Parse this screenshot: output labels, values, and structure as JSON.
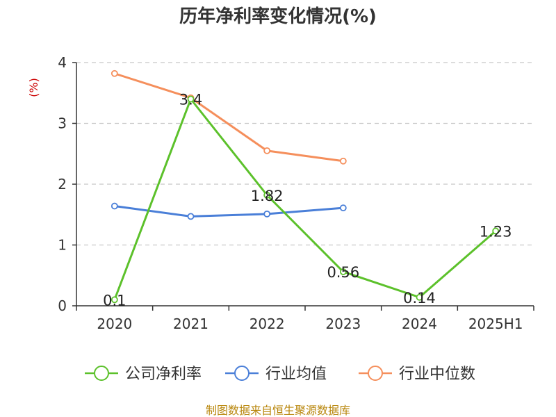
{
  "chart_data": {
    "type": "line",
    "title": "历年净利率变化情况(%)",
    "ylabel": "(%)",
    "categories": [
      "2020",
      "2021",
      "2022",
      "2023",
      "2024",
      "2025H1"
    ],
    "ylim": [
      0,
      4
    ],
    "yticks": [
      "0",
      "1",
      "2",
      "3",
      "4"
    ],
    "grid": true,
    "legend_position": "bottom",
    "series": [
      {
        "name": "公司净利率",
        "color": "#5cc12b",
        "values": [
          0.1,
          3.4,
          1.82,
          0.56,
          0.14,
          1.23
        ],
        "labels": [
          "0.1",
          "3.4",
          "1.82",
          "0.56",
          "0.14",
          "1.23"
        ]
      },
      {
        "name": "行业均值",
        "color": "#4a7fd8",
        "values": [
          1.64,
          1.47,
          1.51,
          1.61,
          null,
          null
        ]
      },
      {
        "name": "行业中位数",
        "color": "#f58f5c",
        "values": [
          3.82,
          3.42,
          2.55,
          2.38,
          null,
          null
        ]
      }
    ]
  },
  "source": "制图数据来自恒生聚源数据库"
}
